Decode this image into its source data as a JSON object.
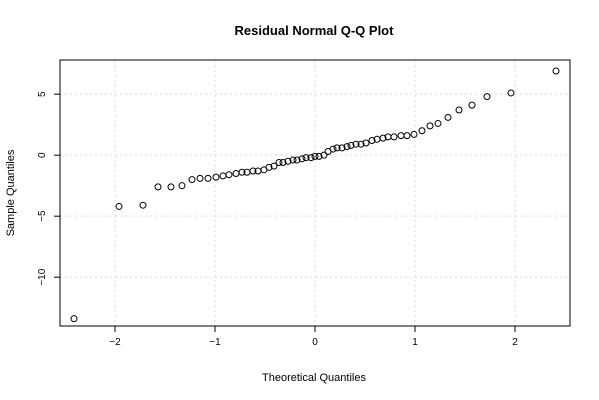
{
  "chart_data": {
    "type": "scatter",
    "title": "Residual Normal Q-Q Plot",
    "xlabel": "Theoretical Quantiles",
    "ylabel": "Sample Quantiles",
    "xlim": [
      -2.55,
      2.55
    ],
    "ylim": [
      -14.0,
      7.8
    ],
    "x_ticks": [
      -2,
      -1,
      0,
      1,
      2
    ],
    "x_tick_labels": [
      "−2",
      "−1",
      "0",
      "1",
      "2"
    ],
    "y_ticks": [
      -10,
      -5,
      0,
      5
    ],
    "y_tick_labels": [
      "−10",
      "−5",
      "0",
      "5"
    ],
    "grid": true,
    "points": [
      [
        -2.41,
        -13.4
      ],
      [
        -1.96,
        -4.2
      ],
      [
        -1.72,
        -4.1
      ],
      [
        -1.57,
        -2.6
      ],
      [
        -1.44,
        -2.6
      ],
      [
        -1.33,
        -2.5
      ],
      [
        -1.23,
        -2.0
      ],
      [
        -1.15,
        -1.9
      ],
      [
        -1.07,
        -1.9
      ],
      [
        -0.99,
        -1.8
      ],
      [
        -0.92,
        -1.7
      ],
      [
        -0.86,
        -1.6
      ],
      [
        -0.79,
        -1.5
      ],
      [
        -0.73,
        -1.4
      ],
      [
        -0.68,
        -1.4
      ],
      [
        -0.62,
        -1.3
      ],
      [
        -0.57,
        -1.3
      ],
      [
        -0.51,
        -1.2
      ],
      [
        -0.46,
        -1.0
      ],
      [
        -0.41,
        -0.9
      ],
      [
        -0.36,
        -0.6
      ],
      [
        -0.32,
        -0.6
      ],
      [
        -0.27,
        -0.5
      ],
      [
        -0.22,
        -0.4
      ],
      [
        -0.18,
        -0.4
      ],
      [
        -0.13,
        -0.3
      ],
      [
        -0.09,
        -0.2
      ],
      [
        -0.04,
        -0.2
      ],
      [
        0.0,
        -0.1
      ],
      [
        0.04,
        -0.1
      ],
      [
        0.09,
        0.0
      ],
      [
        0.13,
        0.3
      ],
      [
        0.18,
        0.5
      ],
      [
        0.22,
        0.6
      ],
      [
        0.27,
        0.6
      ],
      [
        0.32,
        0.7
      ],
      [
        0.36,
        0.8
      ],
      [
        0.41,
        0.9
      ],
      [
        0.46,
        0.9
      ],
      [
        0.51,
        1.0
      ],
      [
        0.57,
        1.2
      ],
      [
        0.62,
        1.3
      ],
      [
        0.68,
        1.4
      ],
      [
        0.73,
        1.5
      ],
      [
        0.79,
        1.5
      ],
      [
        0.86,
        1.6
      ],
      [
        0.92,
        1.6
      ],
      [
        0.99,
        1.7
      ],
      [
        1.07,
        2.0
      ],
      [
        1.15,
        2.4
      ],
      [
        1.23,
        2.6
      ],
      [
        1.33,
        3.1
      ],
      [
        1.44,
        3.7
      ],
      [
        1.57,
        4.1
      ],
      [
        1.72,
        4.8
      ],
      [
        1.96,
        5.1
      ],
      [
        2.41,
        6.9
      ]
    ]
  }
}
